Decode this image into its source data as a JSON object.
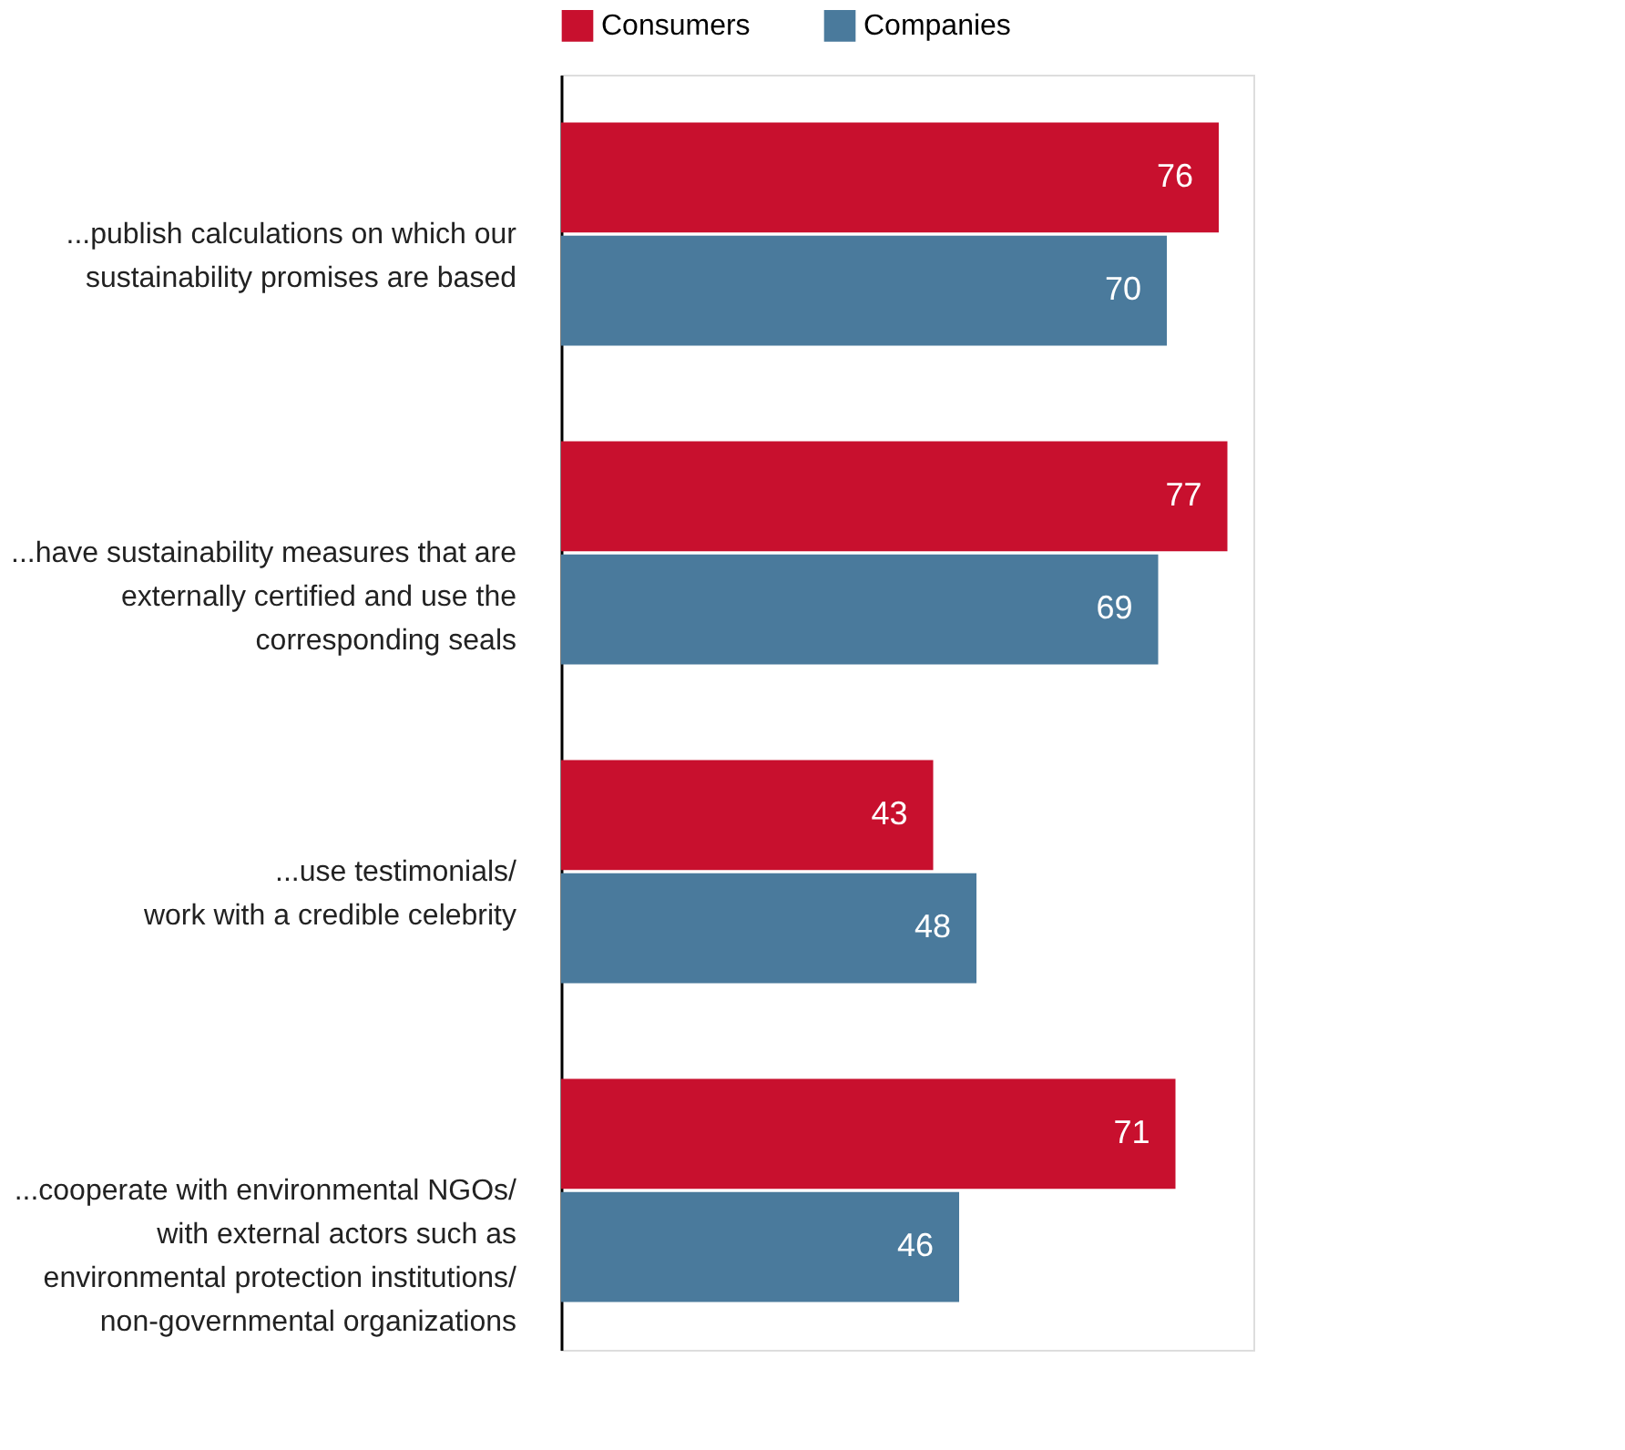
{
  "chart_data": {
    "type": "bar",
    "orientation": "horizontal",
    "categories": [
      "...publish calculations on which our\nsustainability promises are based",
      "...have sustainability measures that are\nexternally certified and use the\ncorresponding seals",
      "...use testimonials/\nwork with a credible celebrity",
      "...cooperate with environmental NGOs/\nwith external actors such as\nenvironmental protection institutions/\nnon-governmental organizations"
    ],
    "series": [
      {
        "name": "Consumers",
        "color": "#c8102e",
        "values": [
          76,
          77,
          43,
          71
        ]
      },
      {
        "name": "Companies",
        "color": "#4a7a9c",
        "values": [
          70,
          69,
          48,
          46
        ]
      }
    ],
    "xlim": [
      0,
      80
    ],
    "data_labels": true,
    "legend": "top left",
    "grid": false
  }
}
